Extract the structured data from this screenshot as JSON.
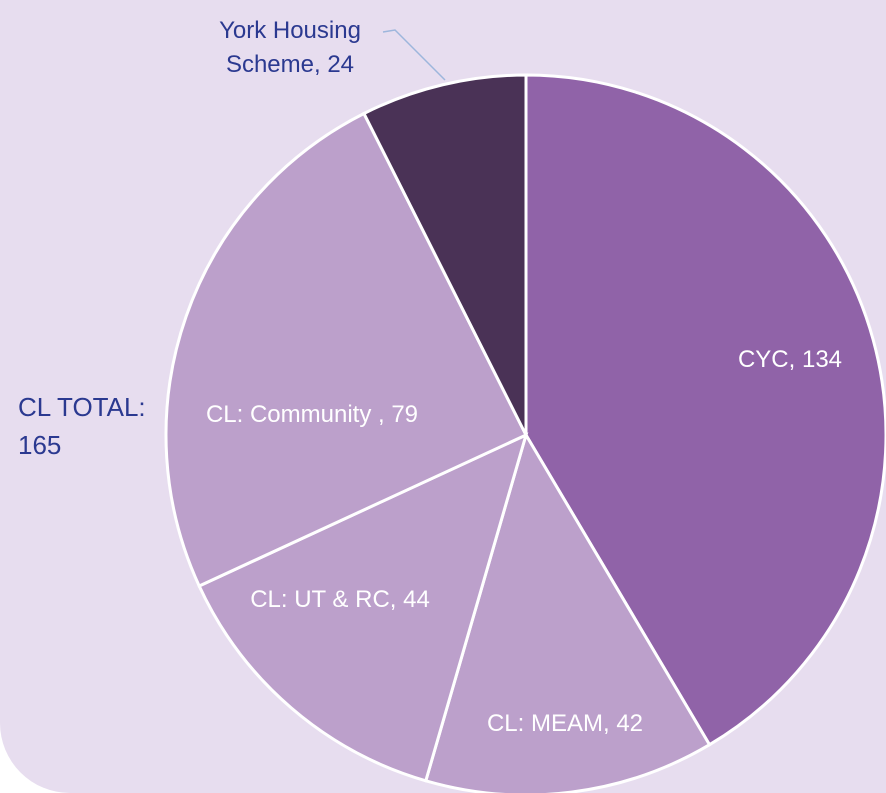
{
  "chart_data": {
    "type": "pie",
    "values": [
      134,
      42,
      44,
      79,
      24
    ],
    "value_labels": [
      "CYC, 134",
      "CL: MEAM, 42",
      "CL: UT & RC, 44",
      "CL: Community , 79",
      "York Housing Scheme, 24"
    ],
    "colors": [
      "#9063a8",
      "#bca0cb",
      "#bca0cb",
      "#bca0cb",
      "#4a3256"
    ],
    "annotation": "CL TOTAL: 165"
  }
}
